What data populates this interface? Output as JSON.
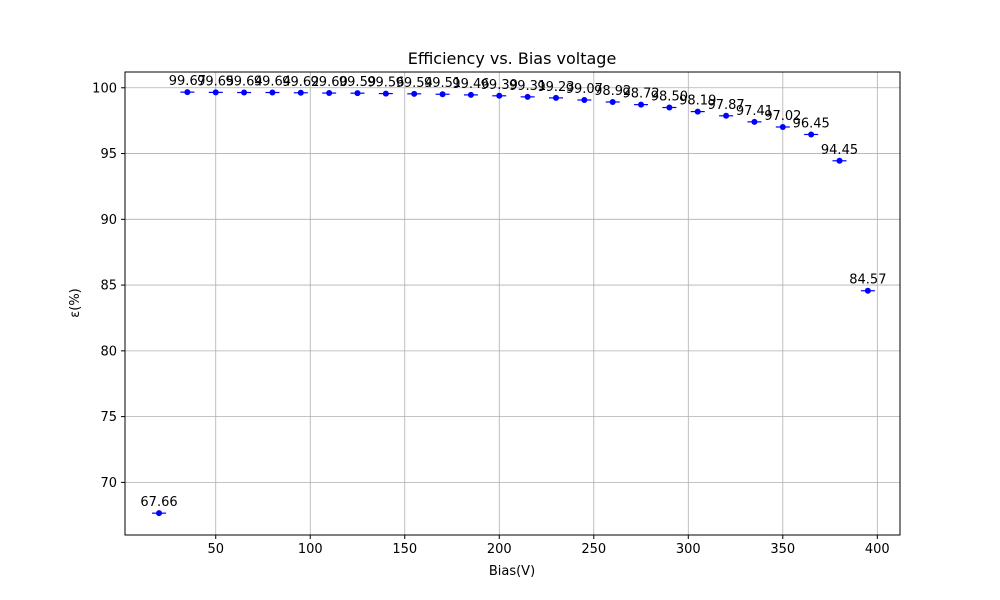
{
  "chart_data": {
    "type": "scatter",
    "title": "Efficiency vs. Bias voltage",
    "xlabel": "Bias(V)",
    "ylabel": "ε(%)",
    "xlim": [
      2,
      412
    ],
    "ylim": [
      66.0,
      101.2
    ],
    "xticks": [
      50,
      100,
      150,
      200,
      250,
      300,
      350,
      400
    ],
    "yticks": [
      70,
      75,
      80,
      85,
      90,
      95,
      100
    ],
    "grid": true,
    "color": "#0000ff",
    "series": [
      {
        "x": [
          20,
          35,
          50,
          65,
          80,
          95,
          110,
          125,
          140,
          155,
          170,
          185,
          200,
          215,
          230,
          245,
          260,
          275,
          290,
          305,
          320,
          335,
          350,
          365,
          380,
          395
        ],
        "values": [
          67.66,
          99.67,
          99.65,
          99.64,
          99.64,
          99.62,
          99.6,
          99.59,
          99.56,
          99.54,
          99.51,
          99.46,
          99.39,
          99.31,
          99.23,
          99.07,
          98.92,
          98.72,
          98.5,
          98.19,
          97.87,
          97.41,
          97.02,
          96.45,
          94.45,
          84.57
        ],
        "labels": [
          "67.66",
          "99.67",
          "99.65",
          "99.64",
          "99.64",
          "99.62",
          "99.60",
          "99.59",
          "99.56",
          "99.54",
          "99.51",
          "99.46",
          "99.39",
          "99.31",
          "99.23",
          "99.07",
          "98.92",
          "98.72",
          "98.50",
          "98.19",
          "97.87",
          "97.41",
          "97.02",
          "96.45",
          "94.45",
          "84.57"
        ]
      }
    ]
  }
}
